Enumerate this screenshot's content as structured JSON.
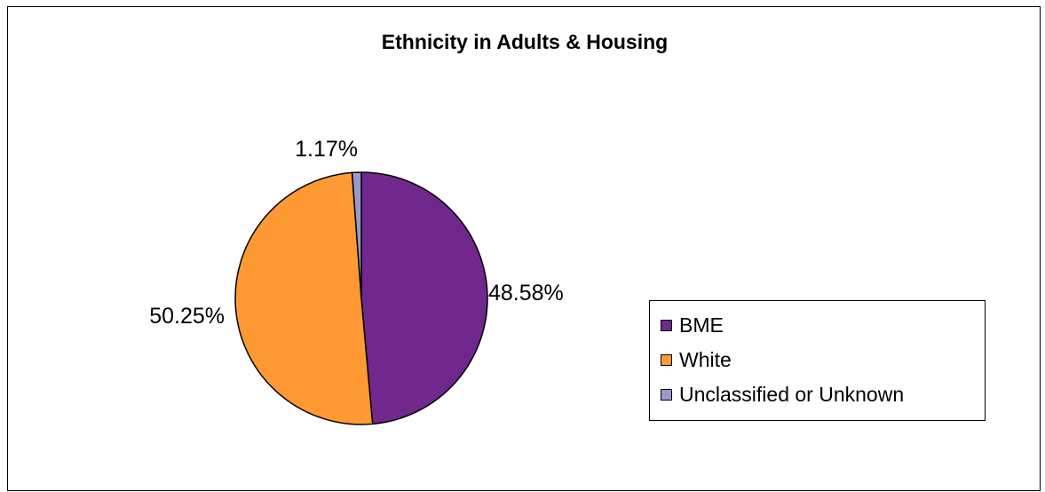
{
  "chart_data": {
    "type": "pie",
    "title": "Ethnicity in Adults & Housing",
    "slices": [
      {
        "label": "BME",
        "value": 48.58,
        "value_label": "48.58%",
        "color": "#70288c"
      },
      {
        "label": "White",
        "value": 50.25,
        "value_label": "50.25%",
        "color": "#ff9933"
      },
      {
        "label": "Unclassified or Unknown",
        "value": 1.17,
        "value_label": "1.17%",
        "color": "#9999cc"
      }
    ],
    "legend_position": "right"
  }
}
